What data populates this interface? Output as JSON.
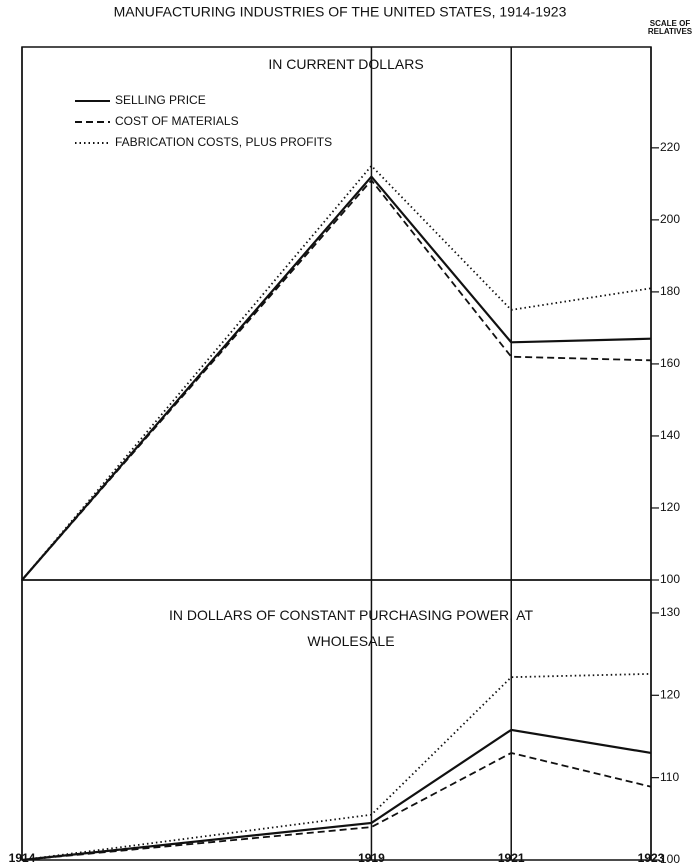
{
  "title": "MANUFACTURING INDUSTRIES OF THE UNITED STATES, 1914-1923",
  "ylabel": "SCALE OF RELATIVES",
  "chart_data": [
    {
      "type": "line",
      "title": "IN CURRENT DOLLARS",
      "x": [
        1914,
        1919,
        1921,
        1923
      ],
      "xlim": [
        1914,
        1923
      ],
      "ylim": [
        100,
        248
      ],
      "yticks": [
        100,
        120,
        140,
        160,
        180,
        200,
        220
      ],
      "legend": "upper left",
      "series": [
        {
          "name": "SELLING PRICE",
          "color": "#111",
          "dash": "solid",
          "values": [
            100,
            212,
            166,
            167
          ]
        },
        {
          "name": "COST OF MATERIALS",
          "color": "#111",
          "dash": "dashed",
          "values": [
            100,
            211,
            162,
            161
          ]
        },
        {
          "name": "FABRICATION COSTS, PLUS PROFITS",
          "color": "#111",
          "dash": "dotted",
          "values": [
            100,
            215,
            175,
            181
          ]
        }
      ]
    },
    {
      "type": "line",
      "title": "IN DOLLARS OF CONSTANT PURCHASING POWER, AT WHOLESALE",
      "x": [
        1914,
        1919,
        1921,
        1923
      ],
      "xlim": [
        1914,
        1923
      ],
      "xticks": [
        1914,
        1919,
        1921,
        1923
      ],
      "ylim": [
        100,
        134
      ],
      "yticks": [
        100,
        110,
        120,
        130
      ],
      "series": [
        {
          "color": "#111",
          "dash": "solid",
          "values": [
            100,
            104.5,
            115.8,
            113
          ]
        },
        {
          "color": "#111",
          "dash": "dashed",
          "values": [
            100,
            104,
            113,
            108.9
          ]
        },
        {
          "color": "#111",
          "dash": "dotted",
          "values": [
            100,
            105.5,
            122.2,
            122.6
          ]
        }
      ]
    }
  ]
}
